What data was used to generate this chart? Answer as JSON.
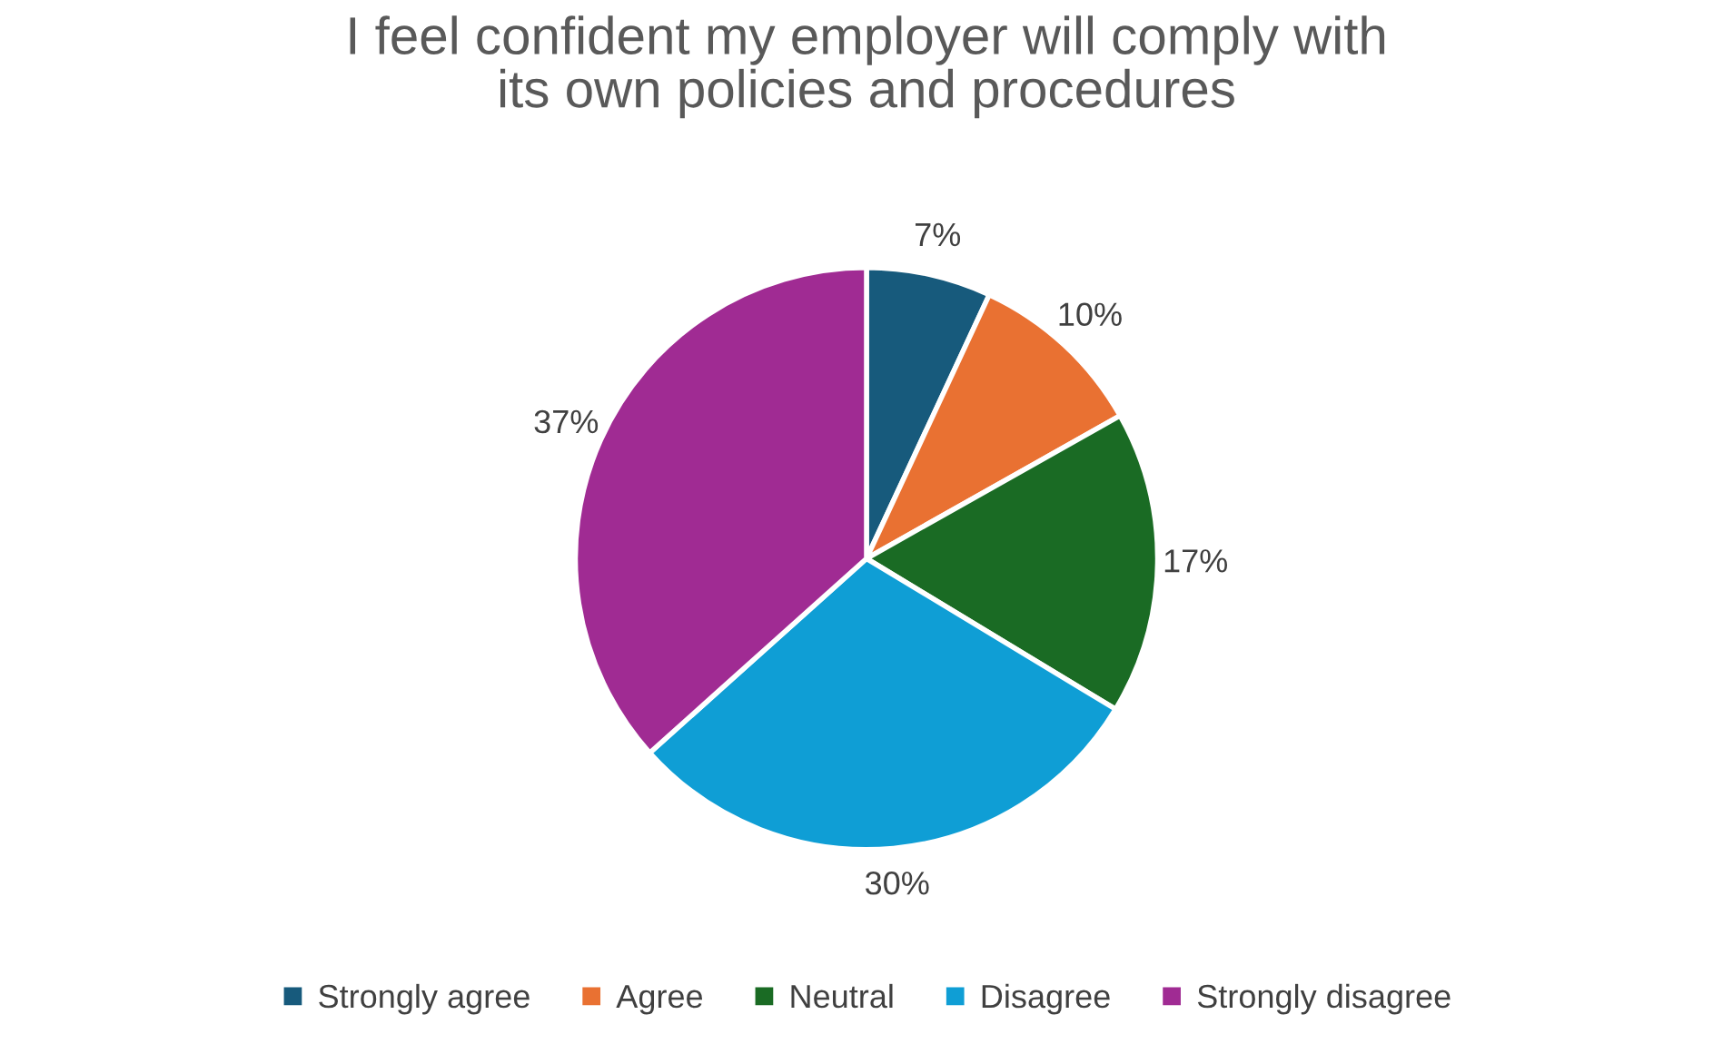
{
  "chart_data": {
    "type": "pie",
    "title": "I feel confident my employer will comply with\nits own policies and procedures",
    "categories": [
      "Strongly agree",
      "Agree",
      "Neutral",
      "Disagree",
      "Strongly disagree"
    ],
    "values": [
      7,
      10,
      17,
      30,
      37
    ],
    "colors": [
      "#175a7c",
      "#e97132",
      "#1a6b24",
      "#0f9ed5",
      "#a02b93"
    ],
    "value_labels": [
      "7%",
      "10%",
      "17%",
      "30%",
      "37%"
    ],
    "legend": "bottom"
  }
}
